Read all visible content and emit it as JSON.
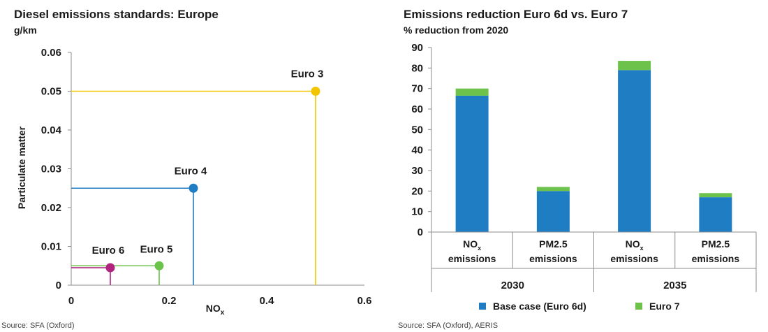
{
  "chart_data": [
    {
      "type": "scatter",
      "title": "Diesel emissions standards: Europe",
      "unit_label": "g/km",
      "xlabel": "NO",
      "xlabel_subscript": "x",
      "ylabel": "Particulate matter",
      "xlim": [
        0,
        0.6
      ],
      "ylim": [
        0,
        0.06
      ],
      "x_ticks": [
        0,
        0.2,
        0.4,
        0.6
      ],
      "x_tick_labels": [
        "0",
        "0.2",
        "0.4",
        "0.6"
      ],
      "y_ticks": [
        0,
        0.01,
        0.02,
        0.03,
        0.04,
        0.05,
        0.06
      ],
      "y_tick_labels": [
        "0",
        "0.01",
        "0.02",
        "0.03",
        "0.04",
        "0.05",
        "0.06"
      ],
      "points": [
        {
          "label": "Euro 3",
          "x": 0.5,
          "y": 0.05,
          "color": "#f2c500"
        },
        {
          "label": "Euro 4",
          "x": 0.25,
          "y": 0.025,
          "color": "#1f7dc4"
        },
        {
          "label": "Euro 5",
          "x": 0.18,
          "y": 0.005,
          "color": "#6cc24a"
        },
        {
          "label": "Euro 6",
          "x": 0.08,
          "y": 0.0045,
          "color": "#b0237e"
        }
      ],
      "source": "Source: SFA (Oxford)"
    },
    {
      "type": "bar",
      "stacked": true,
      "title": "Emissions reduction Euro 6d vs. Euro 7",
      "subtitle": "% reduction from 2020",
      "ylim": [
        0,
        90
      ],
      "y_ticks": [
        0,
        10,
        20,
        30,
        40,
        50,
        60,
        70,
        80,
        90
      ],
      "y_tick_labels": [
        "0",
        "10",
        "20",
        "30",
        "40",
        "50",
        "60",
        "70",
        "80",
        "90"
      ],
      "categories": [
        {
          "line1": "NO",
          "sub": "x",
          "line2": "emissions",
          "group": "2030"
        },
        {
          "line1": "PM2.5",
          "sub": "",
          "line2": "emissions",
          "group": "2030"
        },
        {
          "line1": "NO",
          "sub": "x",
          "line2": "emissions",
          "group": "2035"
        },
        {
          "line1": "PM2.5",
          "sub": "",
          "line2": "emissions",
          "group": "2035"
        }
      ],
      "groups": [
        "2030",
        "2035"
      ],
      "series": [
        {
          "name": "Base case (Euro 6d)",
          "color": "#1f7dc4",
          "values": [
            66.5,
            20,
            79,
            17
          ]
        },
        {
          "name": "Euro 7",
          "color": "#6cc24a",
          "values": [
            3.5,
            2,
            4.5,
            2
          ]
        }
      ],
      "source": "Source: SFA (Oxford), AERIS"
    }
  ]
}
